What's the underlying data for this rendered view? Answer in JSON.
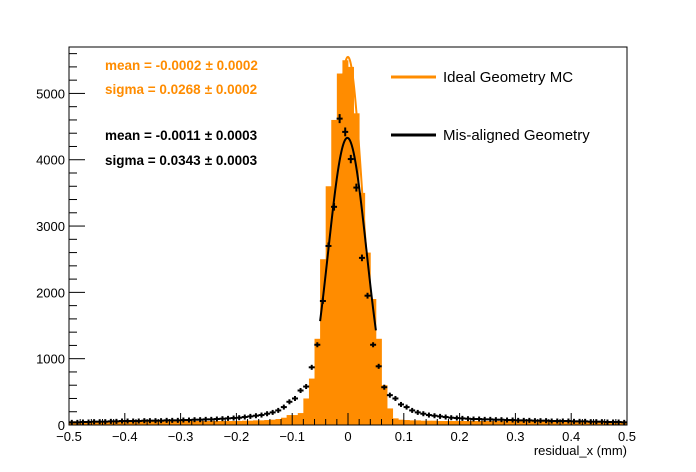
{
  "chart_data": {
    "type": "bar",
    "xlabel": "residual_x (mm)",
    "ylabel": "",
    "xlim": [
      -0.5,
      0.5
    ],
    "ylim": [
      0,
      5700
    ],
    "x_ticks": [
      "−0.5",
      "−0.4",
      "−0.3",
      "−0.2",
      "−0.1",
      "0",
      "0.1",
      "0.2",
      "0.3",
      "0.4",
      "0.5"
    ],
    "y_ticks": [
      "0",
      "1000",
      "2000",
      "3000",
      "4000",
      "5000"
    ],
    "x_tick_values": [
      -0.5,
      -0.4,
      -0.3,
      -0.2,
      -0.1,
      0,
      0.1,
      0.2,
      0.3,
      0.4,
      0.5
    ],
    "y_tick_values": [
      0,
      1000,
      2000,
      3000,
      4000,
      5000
    ],
    "stats": {
      "ideal_mean": "mean = -0.0002",
      "ideal_mean_err": "± 0.0002",
      "ideal_sigma": "sigma = 0.0268",
      "ideal_sigma_err": "± 0.0002",
      "misaligned_mean": "mean = -0.0011",
      "misaligned_mean_err": "± 0.0003",
      "misaligned_sigma": "sigma = 0.0343",
      "misaligned_sigma_err": "± 0.0003"
    },
    "legend": {
      "placement": "top-right",
      "ideal": "Ideal Geometry MC",
      "misaligned": "Mis-aligned Geometry"
    },
    "colors": {
      "ideal": "#ff8c00",
      "misaligned": "#000000"
    },
    "series": [
      {
        "name": "Ideal Geometry MC",
        "style": "filled-histogram",
        "x": [
          -0.5,
          -0.49,
          -0.48,
          -0.47,
          -0.46,
          -0.45,
          -0.44,
          -0.43,
          -0.42,
          -0.41,
          -0.4,
          -0.39,
          -0.38,
          -0.37,
          -0.36,
          -0.35,
          -0.34,
          -0.33,
          -0.32,
          -0.31,
          -0.3,
          -0.29,
          -0.28,
          -0.27,
          -0.26,
          -0.25,
          -0.24,
          -0.23,
          -0.22,
          -0.21,
          -0.2,
          -0.19,
          -0.18,
          -0.17,
          -0.16,
          -0.15,
          -0.14,
          -0.13,
          -0.12,
          -0.11,
          -0.1,
          -0.09,
          -0.08,
          -0.07,
          -0.06,
          -0.05,
          -0.04,
          -0.03,
          -0.02,
          -0.01,
          0,
          0.01,
          0.02,
          0.03,
          0.04,
          0.05,
          0.06,
          0.07,
          0.08,
          0.09,
          0.1,
          0.11,
          0.12,
          0.13,
          0.14,
          0.15,
          0.16,
          0.17,
          0.18,
          0.19,
          0.2,
          0.21,
          0.22,
          0.23,
          0.24,
          0.25,
          0.26,
          0.27,
          0.28,
          0.29,
          0.3,
          0.31,
          0.32,
          0.33,
          0.34,
          0.35,
          0.36,
          0.37,
          0.38,
          0.39,
          0.4,
          0.41,
          0.42,
          0.43,
          0.44,
          0.45,
          0.46,
          0.47,
          0.48,
          0.49
        ],
        "bin_width": 0.01,
        "values": [
          55,
          55,
          55,
          55,
          55,
          55,
          55,
          55,
          55,
          55,
          55,
          55,
          60,
          60,
          60,
          60,
          60,
          60,
          60,
          60,
          60,
          60,
          60,
          60,
          60,
          60,
          60,
          60,
          60,
          60,
          60,
          65,
          65,
          70,
          70,
          75,
          80,
          90,
          110,
          150,
          150,
          180,
          400,
          700,
          1300,
          2500,
          3600,
          4600,
          5300,
          5500,
          5400,
          4700,
          3500,
          2600,
          1900,
          1300,
          600,
          250,
          100,
          80,
          75,
          70,
          70,
          65,
          65,
          65,
          60,
          60,
          60,
          60,
          60,
          60,
          60,
          60,
          60,
          60,
          60,
          60,
          60,
          60,
          60,
          60,
          60,
          60,
          60,
          60,
          60,
          60,
          60,
          55,
          55,
          55,
          55,
          55,
          55,
          55,
          55,
          55,
          55,
          55
        ]
      },
      {
        "name": "Mis-aligned Geometry",
        "style": "points",
        "x": [
          -0.495,
          -0.485,
          -0.475,
          -0.465,
          -0.455,
          -0.445,
          -0.435,
          -0.425,
          -0.415,
          -0.405,
          -0.395,
          -0.385,
          -0.375,
          -0.365,
          -0.355,
          -0.345,
          -0.335,
          -0.325,
          -0.315,
          -0.305,
          -0.295,
          -0.285,
          -0.275,
          -0.265,
          -0.255,
          -0.245,
          -0.235,
          -0.225,
          -0.215,
          -0.205,
          -0.195,
          -0.185,
          -0.175,
          -0.165,
          -0.155,
          -0.145,
          -0.135,
          -0.125,
          -0.115,
          -0.105,
          -0.095,
          -0.085,
          -0.075,
          -0.065,
          -0.055,
          -0.045,
          -0.035,
          -0.025,
          -0.015,
          -0.005,
          0.005,
          0.015,
          0.025,
          0.035,
          0.045,
          0.055,
          0.065,
          0.075,
          0.085,
          0.095,
          0.105,
          0.115,
          0.125,
          0.135,
          0.145,
          0.155,
          0.165,
          0.175,
          0.185,
          0.195,
          0.205,
          0.215,
          0.225,
          0.235,
          0.245,
          0.255,
          0.265,
          0.275,
          0.285,
          0.295,
          0.305,
          0.315,
          0.325,
          0.335,
          0.345,
          0.355,
          0.365,
          0.375,
          0.385,
          0.395,
          0.405,
          0.415,
          0.425,
          0.435,
          0.445,
          0.455,
          0.465,
          0.475,
          0.485,
          0.495
        ],
        "values": [
          40,
          40,
          45,
          45,
          50,
          50,
          50,
          55,
          55,
          60,
          60,
          60,
          60,
          65,
          65,
          65,
          65,
          70,
          70,
          70,
          75,
          75,
          80,
          80,
          85,
          85,
          90,
          95,
          100,
          105,
          110,
          120,
          130,
          140,
          150,
          170,
          190,
          220,
          270,
          350,
          400,
          520,
          580,
          870,
          1210,
          1870,
          2700,
          3290,
          4620,
          4420,
          4010,
          3580,
          2520,
          1950,
          1210,
          885,
          570,
          450,
          400,
          310,
          270,
          220,
          190,
          170,
          150,
          140,
          130,
          120,
          110,
          105,
          100,
          95,
          90,
          90,
          85,
          85,
          80,
          80,
          75,
          75,
          70,
          70,
          70,
          65,
          65,
          65,
          60,
          60,
          60,
          60,
          55,
          55,
          55,
          50,
          50,
          50,
          45,
          45,
          45,
          40
        ]
      },
      {
        "name": "Ideal Geometry MC fit",
        "style": "gauss-fit",
        "amplitude": 5550,
        "mean": -0.0002,
        "sigma": 0.0268,
        "fit_range": [
          -0.06,
          0.06
        ]
      },
      {
        "name": "Mis-aligned Geometry fit",
        "style": "gauss-fit",
        "amplitude": 4330,
        "mean": -0.0011,
        "sigma": 0.0343,
        "fit_range": [
          -0.05,
          0.05
        ]
      }
    ]
  }
}
